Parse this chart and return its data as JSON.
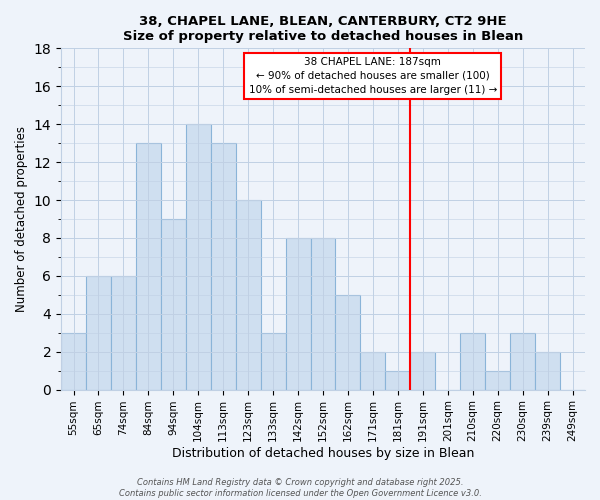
{
  "title": "38, CHAPEL LANE, BLEAN, CANTERBURY, CT2 9HE",
  "subtitle": "Size of property relative to detached houses in Blean",
  "xlabel": "Distribution of detached houses by size in Blean",
  "ylabel": "Number of detached properties",
  "categories": [
    "55sqm",
    "65sqm",
    "74sqm",
    "84sqm",
    "94sqm",
    "104sqm",
    "113sqm",
    "123sqm",
    "133sqm",
    "142sqm",
    "152sqm",
    "162sqm",
    "171sqm",
    "181sqm",
    "191sqm",
    "201sqm",
    "210sqm",
    "220sqm",
    "230sqm",
    "239sqm",
    "249sqm"
  ],
  "values": [
    3,
    6,
    6,
    13,
    9,
    14,
    13,
    10,
    3,
    8,
    8,
    5,
    2,
    1,
    2,
    0,
    3,
    1,
    3,
    2,
    0
  ],
  "bar_color": "#cfdff0",
  "bar_edge_color": "#8ab4d8",
  "vline_color": "red",
  "ylim": [
    0,
    18
  ],
  "yticks": [
    0,
    2,
    4,
    6,
    8,
    10,
    12,
    14,
    16,
    18
  ],
  "annotation_title": "38 CHAPEL LANE: 187sqm",
  "annotation_line1": "← 90% of detached houses are smaller (100)",
  "annotation_line2": "10% of semi-detached houses are larger (11) →",
  "footer_line1": "Contains HM Land Registry data © Crown copyright and database right 2025.",
  "footer_line2": "Contains public sector information licensed under the Open Government Licence v3.0.",
  "background_color": "#eef3fa",
  "grid_color": "#c0d0e4"
}
